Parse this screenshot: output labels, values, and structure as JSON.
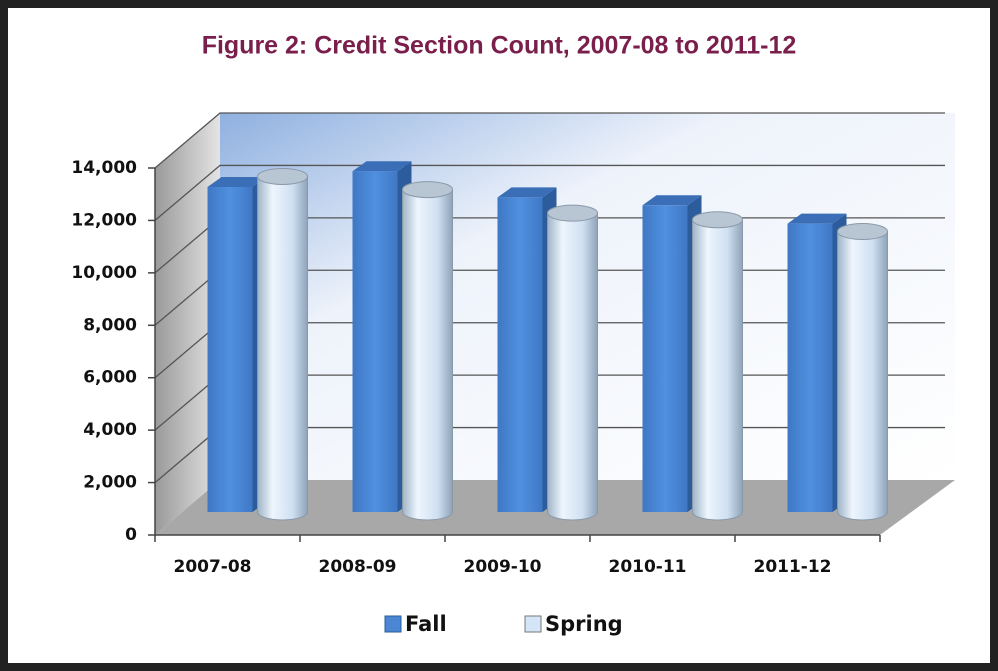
{
  "chart_data": {
    "type": "bar3d",
    "title": "Figure 2: Credit Section Count, 2007-08 to 2011-12",
    "categories": [
      "2007-08",
      "2008-09",
      "2009-10",
      "2010-11",
      "2011-12"
    ],
    "series": [
      {
        "name": "Fall",
        "color": "#4a86d4",
        "values": [
          12400,
          13000,
          12000,
          11700,
          11000
        ]
      },
      {
        "name": "Spring",
        "color": "#d4e5f7",
        "values": [
          12800,
          12300,
          11400,
          11150,
          10700
        ]
      }
    ],
    "ylim": [
      0,
      14000
    ],
    "yticks": [
      0,
      {
        "value": 2000,
        "label": "2,000"
      },
      {
        "value": 4000,
        "label": "4,000"
      },
      {
        "value": 6000,
        "label": "6,000"
      },
      {
        "value": 8000,
        "label": "8,000"
      },
      {
        "value": 10000,
        "label": "10,000"
      },
      {
        "value": 12000,
        "label": "12,000"
      },
      {
        "value": 14000,
        "label": "14,000"
      }
    ],
    "grid": true,
    "legend": "bottom"
  }
}
